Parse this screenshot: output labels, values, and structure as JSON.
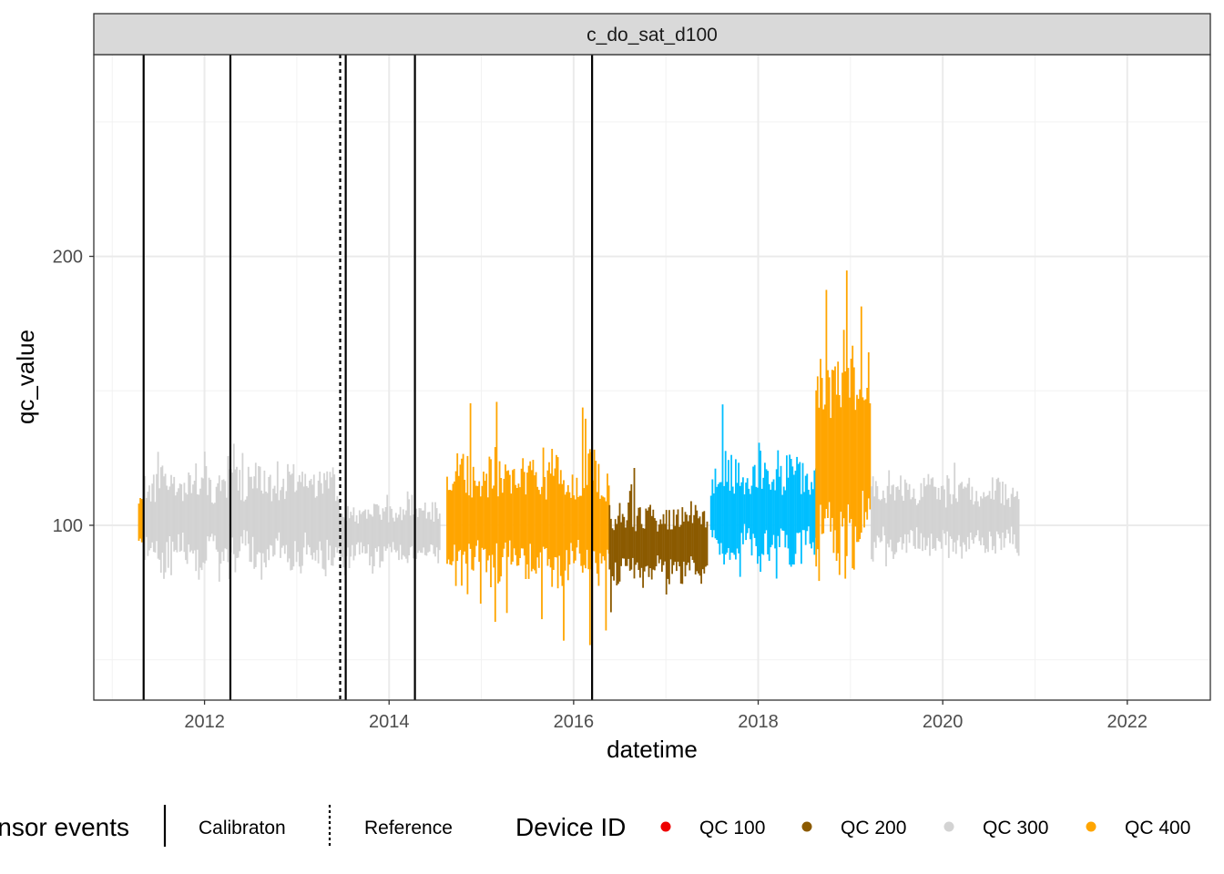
{
  "chart_data": {
    "type": "scatter",
    "facet_label": "c_do_sat_d100",
    "xlabel": "datetime",
    "ylabel": "qc_value",
    "xlim": [
      2010.8,
      2022.9
    ],
    "ylim": [
      35,
      275
    ],
    "x_ticks": [
      2012,
      2014,
      2016,
      2018,
      2020,
      2022
    ],
    "x_tick_labels": [
      "2012",
      "2014",
      "2016",
      "2018",
      "2020",
      "2022"
    ],
    "y_ticks": [
      100,
      200
    ],
    "y_tick_labels": [
      "100",
      "200"
    ],
    "grid": true,
    "legend_position": "bottom",
    "series_colors": {
      "QC 100": "#ee0000",
      "QC 200": "#8b5a00",
      "QC 300": "#d3d3d3",
      "QC 400": "#ffa500",
      "blue": "#00bfff"
    },
    "segments": [
      {
        "color": "orange",
        "x": [
          2011.28,
          2011.33
        ],
        "center": 100,
        "amp": 8,
        "spike": 4
      },
      {
        "color": "gray",
        "x": [
          2011.33,
          2013.45
        ],
        "center": 103,
        "amp": 16,
        "spike": 14
      },
      {
        "color": "gray",
        "x": [
          2013.45,
          2014.55
        ],
        "center": 97,
        "amp": 10,
        "spike": 8
      },
      {
        "color": "orange",
        "x": [
          2014.62,
          2016.38
        ],
        "center": 102,
        "amp": 20,
        "spike": 38
      },
      {
        "color": "brown",
        "x": [
          2016.38,
          2017.45
        ],
        "center": 93,
        "amp": 12,
        "spike": 16
      },
      {
        "color": "blue",
        "x": [
          2017.48,
          2018.62
        ],
        "center": 105,
        "amp": 16,
        "spike": 22
      },
      {
        "color": "orange",
        "x": [
          2018.62,
          2019.22
        ],
        "center": 125,
        "amp": 35,
        "spike": 75
      },
      {
        "color": "gray",
        "x": [
          2019.22,
          2020.82
        ],
        "center": 103,
        "amp": 12,
        "spike": 14
      }
    ],
    "events": [
      {
        "type": "Calibraton",
        "x": 2011.34
      },
      {
        "type": "Calibraton",
        "x": 2012.28
      },
      {
        "type": "Reference",
        "x": 2013.47
      },
      {
        "type": "Calibraton",
        "x": 2013.53
      },
      {
        "type": "Calibraton",
        "x": 2014.28
      },
      {
        "type": "Calibraton",
        "x": 2016.2
      }
    ]
  },
  "legend": {
    "events_title": "Sensor events",
    "calibration_label": "Calibraton",
    "reference_label": "Reference",
    "device_title": "Device ID",
    "qc_items": [
      {
        "label": "QC 100",
        "color": "#ee0000"
      },
      {
        "label": "QC 200",
        "color": "#8b5a00"
      },
      {
        "label": "QC 300",
        "color": "#d3d3d3"
      },
      {
        "label": "QC 400",
        "color": "#ffa500"
      }
    ]
  }
}
